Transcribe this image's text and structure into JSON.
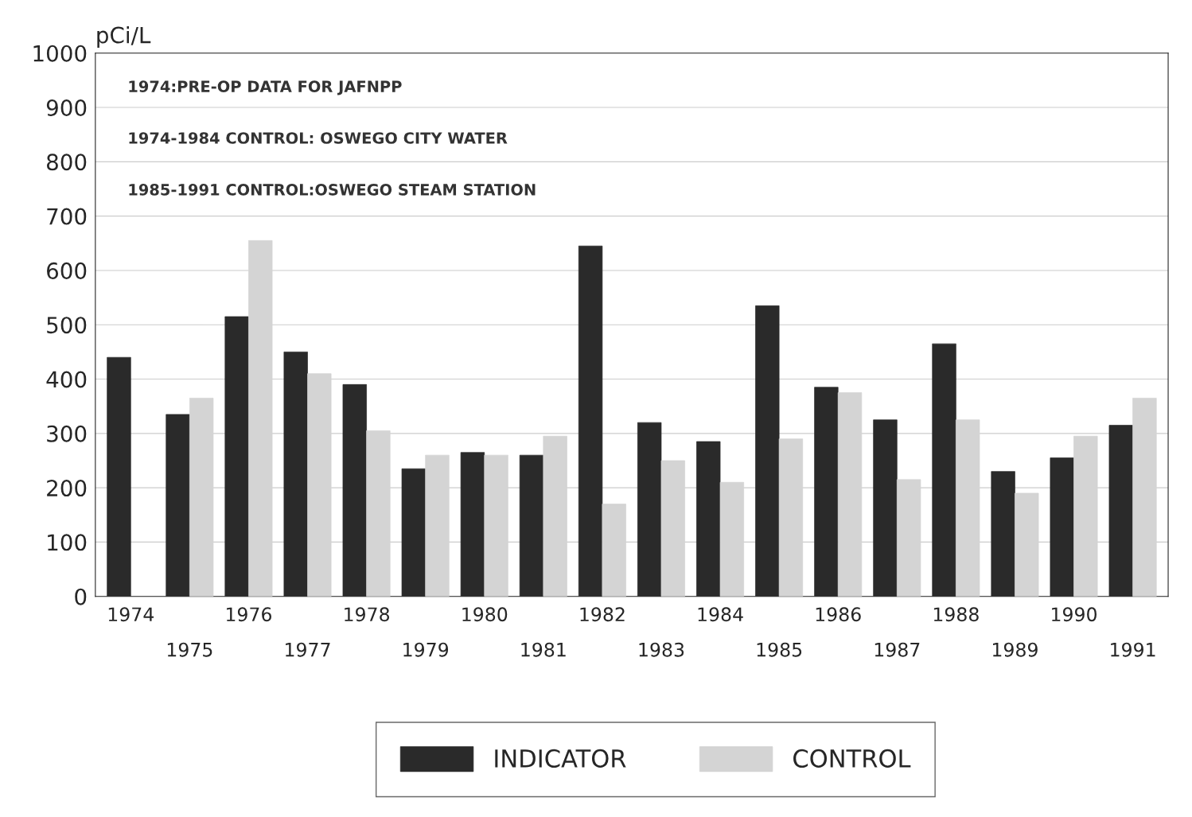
{
  "chart_data": {
    "type": "bar",
    "ylabel": "pCi/L",
    "categories": [
      "1974",
      "1975",
      "1976",
      "1977",
      "1978",
      "1979",
      "1980",
      "1981",
      "1982",
      "1983",
      "1984",
      "1985",
      "1986",
      "1987",
      "1988",
      "1989",
      "1990",
      "1991"
    ],
    "series": [
      {
        "name": "INDICATOR",
        "color": "#2a2a2a",
        "values": [
          440,
          335,
          515,
          450,
          390,
          235,
          265,
          260,
          645,
          320,
          285,
          535,
          385,
          325,
          465,
          230,
          255,
          315
        ]
      },
      {
        "name": "CONTROL",
        "color": "#d4d4d4",
        "values": [
          null,
          365,
          655,
          410,
          305,
          260,
          260,
          295,
          170,
          250,
          210,
          290,
          375,
          215,
          325,
          190,
          295,
          365
        ]
      }
    ],
    "annotations": [
      "1974:PRE-OP DATA FOR JAFNPP",
      "1974-1984 CONTROL: OSWEGO CITY WATER",
      "1985-1991 CONTROL:OSWEGO STEAM STATION"
    ],
    "ylim": [
      0,
      1000
    ],
    "yticks": [
      0,
      100,
      200,
      300,
      400,
      500,
      600,
      700,
      800,
      900,
      1000
    ],
    "grid": "y",
    "legend": "bottom"
  }
}
